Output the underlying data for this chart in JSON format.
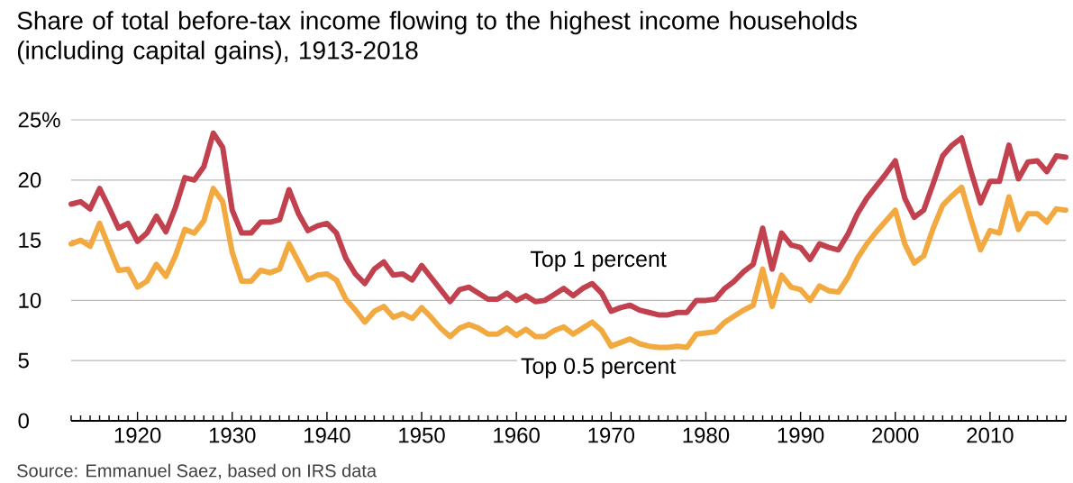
{
  "chart_data": {
    "type": "line",
    "title": "Share of total before-tax income flowing to the highest income households (including capital gains), 1913-2018",
    "x": [
      1913,
      1914,
      1915,
      1916,
      1917,
      1918,
      1919,
      1920,
      1921,
      1922,
      1923,
      1924,
      1925,
      1926,
      1927,
      1928,
      1929,
      1930,
      1931,
      1932,
      1933,
      1934,
      1935,
      1936,
      1937,
      1938,
      1939,
      1940,
      1941,
      1942,
      1943,
      1944,
      1945,
      1946,
      1947,
      1948,
      1949,
      1950,
      1951,
      1952,
      1953,
      1954,
      1955,
      1956,
      1957,
      1958,
      1959,
      1960,
      1961,
      1962,
      1963,
      1964,
      1965,
      1966,
      1967,
      1968,
      1969,
      1970,
      1971,
      1972,
      1973,
      1974,
      1975,
      1976,
      1977,
      1978,
      1979,
      1980,
      1981,
      1982,
      1983,
      1984,
      1985,
      1986,
      1987,
      1988,
      1989,
      1990,
      1991,
      1992,
      1993,
      1994,
      1995,
      1996,
      1997,
      1998,
      1999,
      2000,
      2001,
      2002,
      2003,
      2004,
      2005,
      2006,
      2007,
      2008,
      2009,
      2010,
      2011,
      2012,
      2013,
      2014,
      2015,
      2016,
      2017,
      2018
    ],
    "series": [
      {
        "name": "Top 1 percent",
        "color": "#c1414f",
        "values": [
          18.0,
          18.2,
          17.6,
          19.3,
          17.7,
          16.0,
          16.4,
          14.9,
          15.6,
          17.0,
          15.7,
          17.7,
          20.2,
          20.0,
          21.1,
          23.9,
          22.7,
          17.5,
          15.6,
          15.6,
          16.5,
          16.5,
          16.7,
          19.2,
          17.2,
          15.8,
          16.2,
          16.4,
          15.6,
          13.5,
          12.2,
          11.4,
          12.6,
          13.2,
          12.1,
          12.2,
          11.7,
          12.9,
          11.9,
          10.9,
          9.9,
          10.9,
          11.1,
          10.6,
          10.1,
          10.1,
          10.6,
          10.0,
          10.4,
          9.9,
          10.0,
          10.5,
          11.0,
          10.4,
          11.0,
          11.4,
          10.6,
          9.1,
          9.4,
          9.6,
          9.2,
          9.0,
          8.8,
          8.8,
          9.0,
          9.0,
          10.0,
          10.0,
          10.1,
          11.0,
          11.6,
          12.4,
          13.0,
          16.0,
          12.6,
          15.6,
          14.6,
          14.4,
          13.4,
          14.7,
          14.4,
          14.2,
          15.5,
          17.2,
          18.5,
          19.5,
          20.5,
          21.6,
          18.5,
          16.9,
          17.5,
          19.7,
          22.0,
          22.9,
          23.5,
          20.7,
          18.1,
          19.9,
          19.9,
          22.9,
          20.1,
          21.5,
          21.6,
          20.7,
          22.0,
          21.9
        ]
      },
      {
        "name": "Top 0.5 percent",
        "color": "#f2a93f",
        "values": [
          14.7,
          15.0,
          14.5,
          16.4,
          14.4,
          12.5,
          12.6,
          11.1,
          11.6,
          13.0,
          12.0,
          13.7,
          15.9,
          15.6,
          16.6,
          19.3,
          18.2,
          14.0,
          11.6,
          11.6,
          12.5,
          12.3,
          12.6,
          14.7,
          13.2,
          11.7,
          12.1,
          12.2,
          11.7,
          10.1,
          9.2,
          8.2,
          9.1,
          9.5,
          8.6,
          8.9,
          8.5,
          9.4,
          8.6,
          7.7,
          7.0,
          7.7,
          8.0,
          7.7,
          7.2,
          7.2,
          7.7,
          7.1,
          7.6,
          7.0,
          7.0,
          7.5,
          7.8,
          7.2,
          7.7,
          8.2,
          7.5,
          6.2,
          6.5,
          6.8,
          6.4,
          6.2,
          6.1,
          6.1,
          6.2,
          6.1,
          7.2,
          7.3,
          7.4,
          8.2,
          8.7,
          9.2,
          9.6,
          12.6,
          9.5,
          12.1,
          11.1,
          10.9,
          10.0,
          11.2,
          10.8,
          10.7,
          11.9,
          13.5,
          14.7,
          15.7,
          16.6,
          17.5,
          14.7,
          13.1,
          13.7,
          16.0,
          17.9,
          18.7,
          19.4,
          16.7,
          14.2,
          15.8,
          15.6,
          18.6,
          15.9,
          17.2,
          17.2,
          16.5,
          17.6,
          17.5
        ]
      }
    ],
    "xlim": [
      1913,
      2018
    ],
    "xticks": [
      {
        "value": 1913,
        "label": null
      },
      {
        "value": 1914,
        "label": null
      },
      {
        "value": 1915,
        "label": null
      },
      {
        "value": 1916,
        "label": null
      },
      {
        "value": 1917,
        "label": null
      },
      {
        "value": 1918,
        "label": null
      },
      {
        "value": 1919,
        "label": null
      },
      1920,
      {
        "value": 1921,
        "label": null
      },
      {
        "value": 1922,
        "label": null
      },
      {
        "value": 1923,
        "label": null
      },
      {
        "value": 1924,
        "label": null
      },
      {
        "value": 1925,
        "label": null
      },
      {
        "value": 1926,
        "label": null
      },
      {
        "value": 1927,
        "label": null
      },
      {
        "value": 1928,
        "label": null
      },
      {
        "value": 1929,
        "label": null
      },
      1930,
      {
        "value": 1931,
        "label": null
      },
      {
        "value": 1932,
        "label": null
      },
      {
        "value": 1933,
        "label": null
      },
      {
        "value": 1934,
        "label": null
      },
      {
        "value": 1935,
        "label": null
      },
      {
        "value": 1936,
        "label": null
      },
      {
        "value": 1937,
        "label": null
      },
      {
        "value": 1938,
        "label": null
      },
      {
        "value": 1939,
        "label": null
      },
      1940,
      {
        "value": 1941,
        "label": null
      },
      {
        "value": 1942,
        "label": null
      },
      {
        "value": 1943,
        "label": null
      },
      {
        "value": 1944,
        "label": null
      },
      {
        "value": 1945,
        "label": null
      },
      {
        "value": 1946,
        "label": null
      },
      {
        "value": 1947,
        "label": null
      },
      {
        "value": 1948,
        "label": null
      },
      {
        "value": 1949,
        "label": null
      },
      1950,
      {
        "value": 1951,
        "label": null
      },
      {
        "value": 1952,
        "label": null
      },
      {
        "value": 1953,
        "label": null
      },
      {
        "value": 1954,
        "label": null
      },
      {
        "value": 1955,
        "label": null
      },
      {
        "value": 1956,
        "label": null
      },
      {
        "value": 1957,
        "label": null
      },
      {
        "value": 1958,
        "label": null
      },
      {
        "value": 1959,
        "label": null
      },
      1960,
      {
        "value": 1961,
        "label": null
      },
      {
        "value": 1962,
        "label": null
      },
      {
        "value": 1963,
        "label": null
      },
      {
        "value": 1964,
        "label": null
      },
      {
        "value": 1965,
        "label": null
      },
      {
        "value": 1966,
        "label": null
      },
      {
        "value": 1967,
        "label": null
      },
      {
        "value": 1968,
        "label": null
      },
      {
        "value": 1969,
        "label": null
      },
      1970,
      {
        "value": 1971,
        "label": null
      },
      {
        "value": 1972,
        "label": null
      },
      {
        "value": 1973,
        "label": null
      },
      {
        "value": 1974,
        "label": null
      },
      {
        "value": 1975,
        "label": null
      },
      {
        "value": 1976,
        "label": null
      },
      {
        "value": 1977,
        "label": null
      },
      {
        "value": 1978,
        "label": null
      },
      {
        "value": 1979,
        "label": null
      },
      1980,
      {
        "value": 1981,
        "label": null
      },
      {
        "value": 1982,
        "label": null
      },
      {
        "value": 1983,
        "label": null
      },
      {
        "value": 1984,
        "label": null
      },
      {
        "value": 1985,
        "label": null
      },
      {
        "value": 1986,
        "label": null
      },
      {
        "value": 1987,
        "label": null
      },
      {
        "value": 1988,
        "label": null
      },
      {
        "value": 1989,
        "label": null
      },
      1990,
      {
        "value": 1991,
        "label": null
      },
      {
        "value": 1992,
        "label": null
      },
      {
        "value": 1993,
        "label": null
      },
      {
        "value": 1994,
        "label": null
      },
      {
        "value": 1995,
        "label": null
      },
      {
        "value": 1996,
        "label": null
      },
      {
        "value": 1997,
        "label": null
      },
      {
        "value": 1998,
        "label": null
      },
      {
        "value": 1999,
        "label": null
      },
      2000,
      {
        "value": 2001,
        "label": null
      },
      {
        "value": 2002,
        "label": null
      },
      {
        "value": 2003,
        "label": null
      },
      {
        "value": 2004,
        "label": null
      },
      {
        "value": 2005,
        "label": null
      },
      {
        "value": 2006,
        "label": null
      },
      {
        "value": 2007,
        "label": null
      },
      {
        "value": 2008,
        "label": null
      },
      {
        "value": 2009,
        "label": null
      },
      2010,
      {
        "value": 2011,
        "label": null
      },
      {
        "value": 2012,
        "label": null
      },
      {
        "value": 2013,
        "label": null
      },
      {
        "value": 2014,
        "label": null
      },
      {
        "value": 2015,
        "label": null
      },
      {
        "value": 2016,
        "label": null
      },
      {
        "value": 2017,
        "label": null
      },
      {
        "value": 2018,
        "label": null
      }
    ],
    "ylim": [
      0,
      25
    ],
    "yticks": [
      0,
      5,
      10,
      15,
      20,
      {
        "value": 25,
        "label": "25%"
      }
    ],
    "grid": "y",
    "annotations": [
      "Source: Emmanuel Saez, based on IRS data"
    ]
  }
}
